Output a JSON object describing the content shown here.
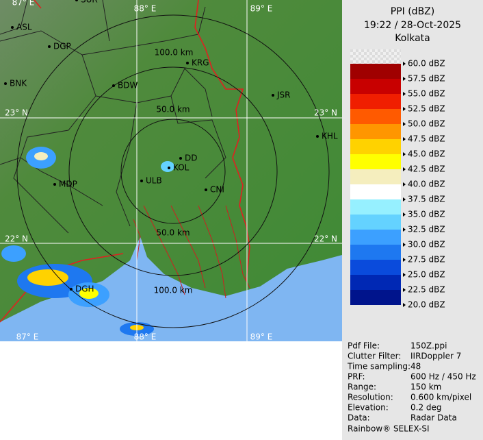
{
  "header": {
    "title": "PPI (dBZ)",
    "timestamp": "19:22 / 28-Oct-2025",
    "station": "Kolkata"
  },
  "legend": {
    "labels": [
      "60.0 dBZ",
      "57.5 dBZ",
      "55.0 dBZ",
      "52.5 dBZ",
      "50.0 dBZ",
      "47.5 dBZ",
      "45.0 dBZ",
      "42.5 dBZ",
      "40.0 dBZ",
      "37.5 dBZ",
      "35.0 dBZ",
      "32.5 dBZ",
      "30.0 dBZ",
      "27.5 dBZ",
      "25.0 dBZ",
      "22.5 dBZ",
      "20.0 dBZ"
    ],
    "colors": [
      "#e6e6e6",
      "#a00000",
      "#c80000",
      "#f01e00",
      "#ff5a00",
      "#ff9600",
      "#ffd200",
      "#ffff00",
      "#f5eebe",
      "#ffffff",
      "#96f0ff",
      "#64d2ff",
      "#3ca0ff",
      "#1e78f0",
      "#0a4bdc",
      "#0028b4",
      "#00148c"
    ]
  },
  "map": {
    "grid_labels": [
      "87° E",
      "88° E",
      "89° E",
      "23° N",
      "23° N",
      "22° N",
      "22° N",
      "87° E",
      "88° E",
      "89° E"
    ],
    "range_labels": [
      "100.0 km",
      "50.0 km",
      "50.0 km",
      "100.0 km"
    ],
    "cities": [
      "ASL",
      "DGP",
      "BNK",
      "BDW",
      "KRG",
      "JSR",
      "KHL",
      "DD",
      "KOL",
      "ULB",
      "CNI",
      "MDP",
      "DGH",
      "SUR"
    ]
  },
  "info": {
    "rows": [
      [
        "Pdf File:",
        "150Z.ppi"
      ],
      [
        "Clutter Filter:",
        "IIRDoppler 7"
      ],
      [
        "Time sampling:",
        "48"
      ],
      [
        "PRF:",
        "600 Hz / 450 Hz"
      ],
      [
        "Range:",
        "150 km"
      ],
      [
        "Resolution:",
        "0.600 km/pixel"
      ],
      [
        "Elevation:",
        "0.2 deg"
      ],
      [
        "Data:",
        "Radar Data"
      ]
    ],
    "footer": "Rainbow® SELEX-SI"
  }
}
